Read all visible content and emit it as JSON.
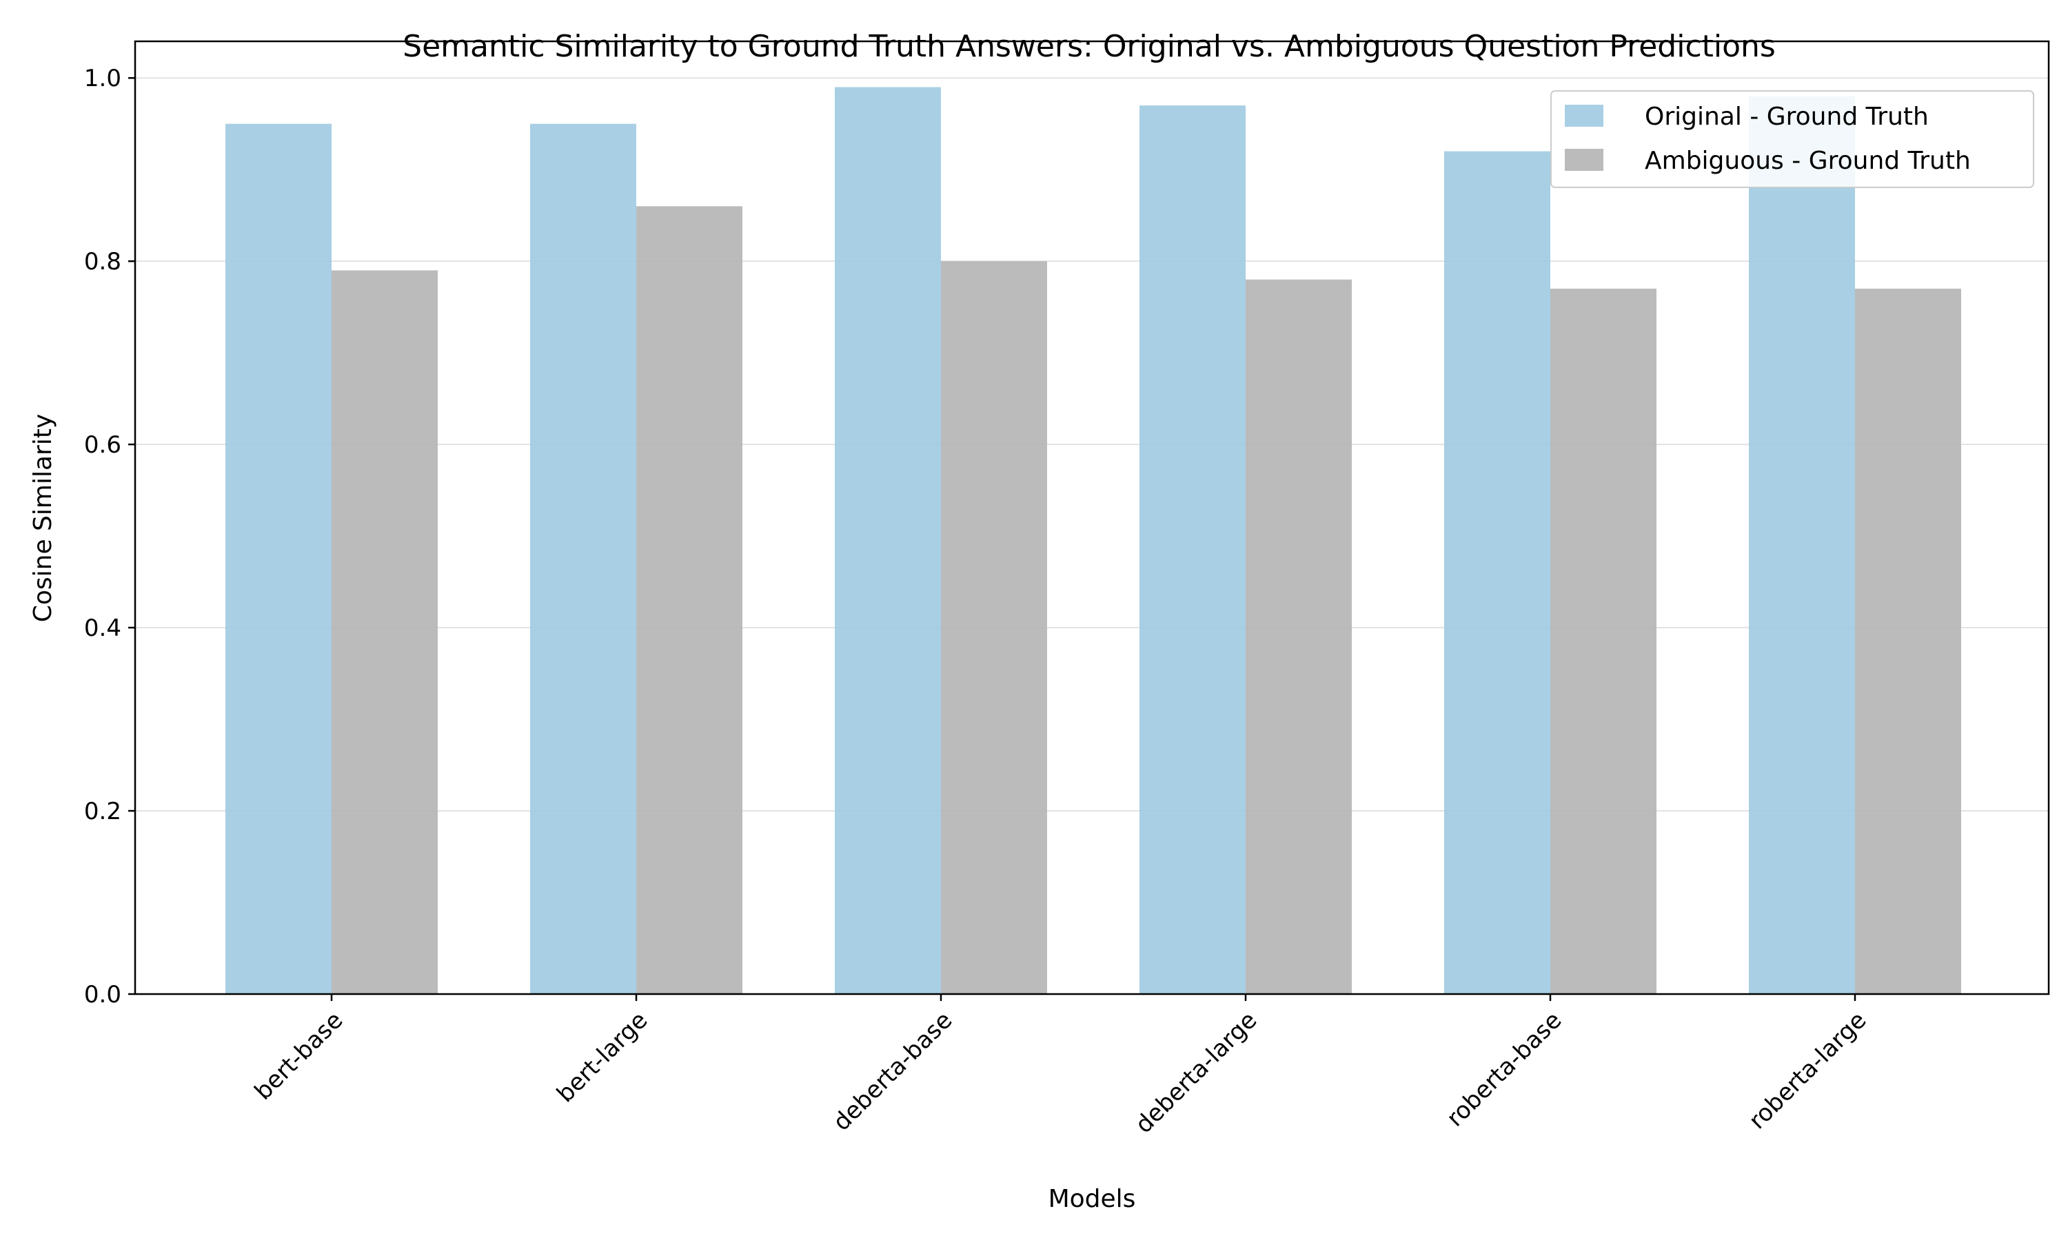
{
  "colors": {
    "original": "#9ecae1",
    "ambiguous": "#b4b4b4",
    "grid": "#e3e3e3",
    "axis": "#000000"
  },
  "chart_data": {
    "type": "bar",
    "title": "Semantic Similarity to Ground Truth Answers: Original vs. Ambiguous Question Predictions",
    "xlabel": "Models",
    "ylabel": "Cosine Similarity",
    "categories": [
      "bert-base",
      "bert-large",
      "deberta-base",
      "deberta-large",
      "roberta-base",
      "roberta-large"
    ],
    "series": [
      {
        "name": "Original - Ground Truth",
        "values": [
          0.95,
          0.95,
          0.99,
          0.97,
          0.92,
          0.98
        ]
      },
      {
        "name": "Ambiguous - Ground Truth",
        "values": [
          0.79,
          0.86,
          0.8,
          0.78,
          0.77,
          0.77
        ]
      }
    ],
    "ylim": [
      0,
      1.04
    ],
    "yticks": [
      "0.0",
      "0.2",
      "0.4",
      "0.6",
      "0.8",
      "1.0"
    ],
    "grid": true,
    "legend_position": "top-right"
  }
}
